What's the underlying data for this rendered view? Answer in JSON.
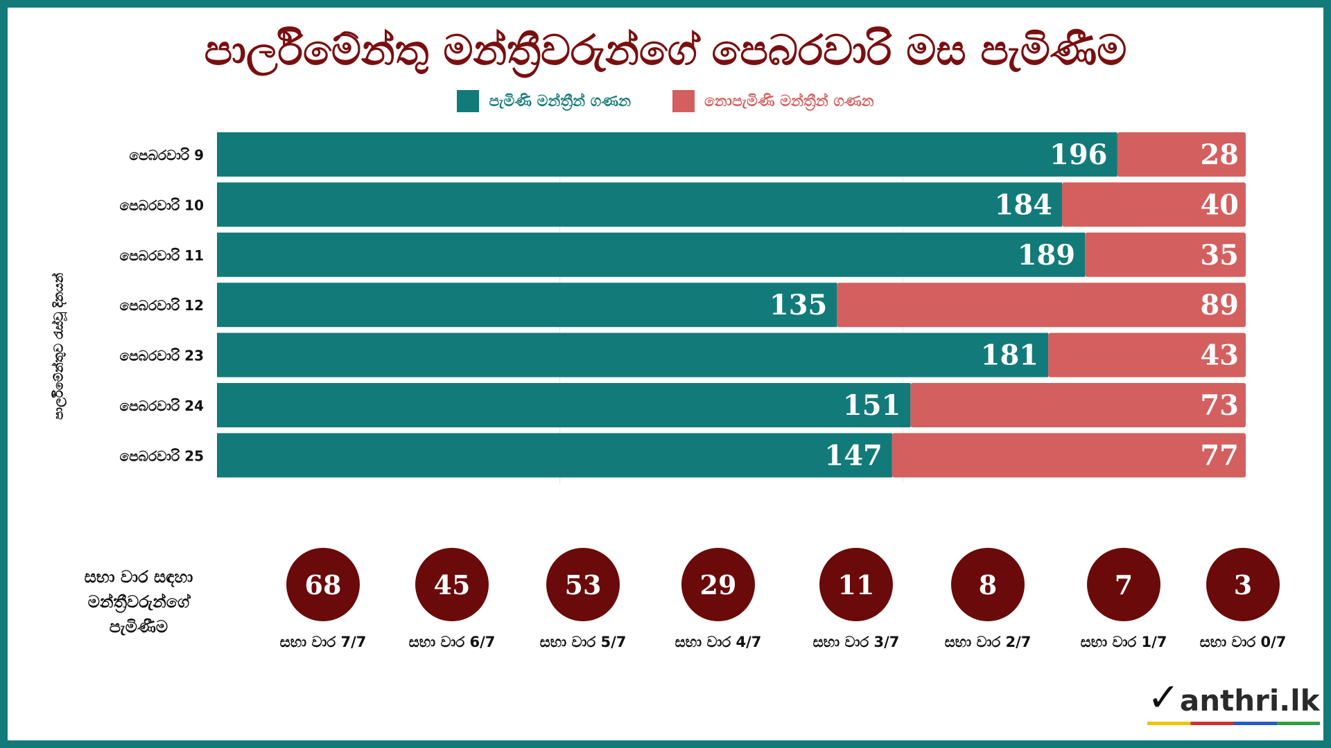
{
  "title": "පාර්ලිමේන්තු මන්ත්‍රීවරුන්ගේ පෙබරවාරි මස පැමිණීම",
  "legend": {
    "present": "පැමිණි මන්ත්‍රීන් ගණන",
    "absent": "නොපැමිණි මන්ත්‍රීන් ගණන"
  },
  "ylabel": "පාර්ලිමේන්තුව රැස්වූ දිනයන්",
  "colors": {
    "present": "#137a7a",
    "absent": "#d35f5f",
    "circle": "#6b0a0a",
    "title": "#7a0f0f"
  },
  "chart_data": {
    "type": "bar",
    "orientation": "horizontal",
    "stacked": true,
    "categories": [
      "පෙබරවාරි 9",
      "පෙබරවාරි 10",
      "පෙබරවාරි 11",
      "පෙබරවාරි 12",
      "පෙබරවාරි 23",
      "පෙබරවාරි 24",
      "පෙබරවාරි 25"
    ],
    "series": [
      {
        "name": "පැමිණි මන්ත්‍රීන් ගණන",
        "values": [
          196,
          184,
          189,
          135,
          181,
          151,
          147
        ]
      },
      {
        "name": "නොපැමිණි මන්ත්‍රීන් ගණන",
        "values": [
          28,
          40,
          35,
          89,
          43,
          73,
          77
        ]
      }
    ],
    "xlim": [
      0,
      224
    ],
    "legend_position": "top-center",
    "grid": true
  },
  "attendance": {
    "label_lines": [
      "සභා වාර සඳහා",
      "මන්ත්‍රීවරුන්ගේ",
      "පැමිණීම"
    ],
    "items": [
      {
        "count": "68",
        "label": "සභා වාර 7/7"
      },
      {
        "count": "45",
        "label": "සභා වාර 6/7"
      },
      {
        "count": "53",
        "label": "සභා වාර 5/7"
      },
      {
        "count": "29",
        "label": "සභා වාර 4/7"
      },
      {
        "count": "11",
        "label": "සභා වාර 3/7"
      },
      {
        "count": "8",
        "label": "සභා වාර 2/7"
      },
      {
        "count": "7",
        "label": "සභා වාර 1/7"
      },
      {
        "count": "3",
        "label": "සභා වාර 0/7"
      }
    ]
  },
  "logo": {
    "text": "anthri.lk"
  }
}
